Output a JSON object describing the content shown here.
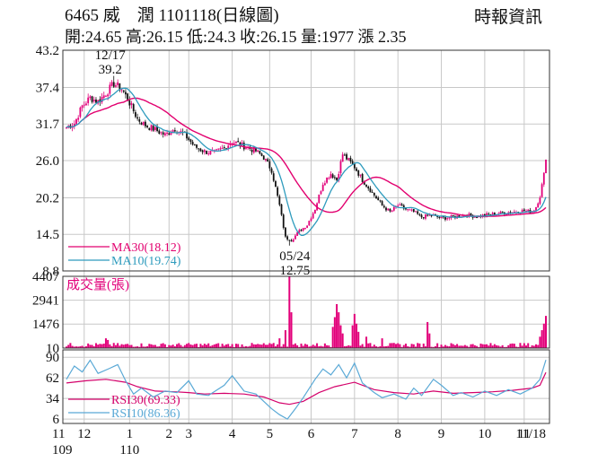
{
  "header": {
    "title": "6465 威　潤 1101118(日線圖)",
    "source": "時報資訊",
    "ohlc": "開:24.65 高:26.15 低:24.3 收:26.15 量:1977 漲 2.35"
  },
  "colors": {
    "up": "#e2007a",
    "down": "#111111",
    "ma30": "#e2006f",
    "ma10": "#2e9bbd",
    "rsi30": "#d4006a",
    "rsi10": "#5aa9d6",
    "volume": "#e2007a",
    "grid": "#c8c8c8"
  },
  "chart_data": [
    {
      "type": "candlestick",
      "name": "price",
      "ylim": [
        8.8,
        43.2
      ],
      "yticks": [
        "43.2",
        "37.4",
        "31.7",
        "26.0",
        "20.2",
        "14.5",
        "8.8"
      ],
      "xticks": [
        {
          "label": "11",
          "day": 0
        },
        {
          "label": "12",
          "day": 9
        },
        {
          "label": "1",
          "day": 32
        },
        {
          "label": "2",
          "day": 52
        },
        {
          "label": "3",
          "day": 62
        },
        {
          "label": "4",
          "day": 84
        },
        {
          "label": "5",
          "day": 103
        },
        {
          "label": "6",
          "day": 124
        },
        {
          "label": "7",
          "day": 146
        },
        {
          "label": "8",
          "day": 168
        },
        {
          "label": "9",
          "day": 190
        },
        {
          "label": "10",
          "day": 212
        },
        {
          "label": "11",
          "day": 232
        },
        {
          "label": "11/18",
          "day": 243
        }
      ],
      "xyear": [
        {
          "label": "109",
          "day": 0
        },
        {
          "label": "110",
          "day": 32
        }
      ],
      "keypoints": [
        {
          "day": 0,
          "close": 31.2
        },
        {
          "day": 4,
          "close": 31.8
        },
        {
          "day": 8,
          "close": 34.5
        },
        {
          "day": 12,
          "close": 35.8
        },
        {
          "day": 16,
          "close": 35.2
        },
        {
          "day": 20,
          "close": 36.5
        },
        {
          "day": 24,
          "close": 38.0
        },
        {
          "day": 28,
          "close": 37.2
        },
        {
          "day": 32,
          "close": 35.0
        },
        {
          "day": 36,
          "close": 32.5
        },
        {
          "day": 40,
          "close": 31.5
        },
        {
          "day": 45,
          "close": 30.8
        },
        {
          "day": 50,
          "close": 30.0
        },
        {
          "day": 55,
          "close": 31.0
        },
        {
          "day": 60,
          "close": 30.0
        },
        {
          "day": 65,
          "close": 28.2
        },
        {
          "day": 70,
          "close": 27.4
        },
        {
          "day": 75,
          "close": 27.2
        },
        {
          "day": 80,
          "close": 28.0
        },
        {
          "day": 84,
          "close": 29.0
        },
        {
          "day": 88,
          "close": 28.5
        },
        {
          "day": 92,
          "close": 28.0
        },
        {
          "day": 96,
          "close": 27.5
        },
        {
          "day": 100,
          "close": 26.5
        },
        {
          "day": 104,
          "close": 24.5
        },
        {
          "day": 108,
          "close": 19.0
        },
        {
          "day": 111,
          "close": 14.0
        },
        {
          "day": 114,
          "close": 13.6
        },
        {
          "day": 118,
          "close": 15.0
        },
        {
          "day": 122,
          "close": 16.0
        },
        {
          "day": 126,
          "close": 18.5
        },
        {
          "day": 130,
          "close": 22.5
        },
        {
          "day": 134,
          "close": 24.0
        },
        {
          "day": 137,
          "close": 23.0
        },
        {
          "day": 140,
          "close": 27.0
        },
        {
          "day": 143,
          "close": 26.0
        },
        {
          "day": 146,
          "close": 25.0
        },
        {
          "day": 150,
          "close": 23.0
        },
        {
          "day": 155,
          "close": 21.0
        },
        {
          "day": 160,
          "close": 19.0
        },
        {
          "day": 164,
          "close": 18.0
        },
        {
          "day": 168,
          "close": 19.0
        },
        {
          "day": 172,
          "close": 18.4
        },
        {
          "day": 176,
          "close": 18.0
        },
        {
          "day": 180,
          "close": 17.2
        },
        {
          "day": 185,
          "close": 17.5
        },
        {
          "day": 190,
          "close": 17.0
        },
        {
          "day": 196,
          "close": 17.2
        },
        {
          "day": 202,
          "close": 17.5
        },
        {
          "day": 208,
          "close": 17.3
        },
        {
          "day": 214,
          "close": 17.6
        },
        {
          "day": 220,
          "close": 17.8
        },
        {
          "day": 226,
          "close": 18.0
        },
        {
          "day": 232,
          "close": 18.2
        },
        {
          "day": 236,
          "close": 18.0
        },
        {
          "day": 238,
          "close": 18.8
        },
        {
          "day": 240,
          "close": 20.5
        },
        {
          "day": 242,
          "close": 23.8
        },
        {
          "day": 243,
          "close": 26.15
        }
      ],
      "annotations": [
        {
          "date": "12/17",
          "value": "39.2",
          "day": 24,
          "price": 39.2
        },
        {
          "date": "05/24",
          "value": "12.75",
          "day": 113,
          "price": 12.75
        }
      ],
      "legend": [
        {
          "label": "MA30(18.12)",
          "color": "#e2006f"
        },
        {
          "label": "MA10(19.74)",
          "color": "#2e9bbd"
        }
      ]
    },
    {
      "type": "bar",
      "name": "volume",
      "title": "成交量(張)",
      "ylim": [
        0,
        4407
      ],
      "yticks": [
        "4407",
        "2941",
        "1476",
        "10"
      ],
      "spikes": [
        {
          "day": 113,
          "value": 4407
        },
        {
          "day": 114,
          "value": 2200
        },
        {
          "day": 111,
          "value": 1100
        },
        {
          "day": 135,
          "value": 1300
        },
        {
          "day": 136,
          "value": 1900
        },
        {
          "day": 137,
          "value": 2700
        },
        {
          "day": 138,
          "value": 2200
        },
        {
          "day": 139,
          "value": 1400
        },
        {
          "day": 140,
          "value": 900
        },
        {
          "day": 145,
          "value": 1400
        },
        {
          "day": 146,
          "value": 2100
        },
        {
          "day": 147,
          "value": 1500
        },
        {
          "day": 148,
          "value": 1000
        },
        {
          "day": 152,
          "value": 700
        },
        {
          "day": 160,
          "value": 600
        },
        {
          "day": 183,
          "value": 1600
        },
        {
          "day": 184,
          "value": 900
        },
        {
          "day": 108,
          "value": 600
        },
        {
          "day": 20,
          "value": 600
        },
        {
          "day": 21,
          "value": 500
        },
        {
          "day": 240,
          "value": 700
        },
        {
          "day": 241,
          "value": 1100
        },
        {
          "day": 242,
          "value": 1500
        },
        {
          "day": 243,
          "value": 1977
        }
      ]
    },
    {
      "type": "line",
      "name": "rsi",
      "ylim": [
        0,
        100
      ],
      "yticks": [
        "90",
        "62",
        "34",
        "6"
      ],
      "series": [
        {
          "name": "RSI30(69.33)",
          "color": "#d4006a",
          "points": [
            [
              0,
              55
            ],
            [
              10,
              58
            ],
            [
              20,
              60
            ],
            [
              30,
              56
            ],
            [
              36,
              50
            ],
            [
              45,
              44
            ],
            [
              55,
              43
            ],
            [
              62,
              42
            ],
            [
              70,
              40
            ],
            [
              80,
              41
            ],
            [
              90,
              40
            ],
            [
              100,
              36
            ],
            [
              108,
              28
            ],
            [
              113,
              26
            ],
            [
              120,
              30
            ],
            [
              128,
              42
            ],
            [
              136,
              50
            ],
            [
              146,
              56
            ],
            [
              156,
              46
            ],
            [
              166,
              42
            ],
            [
              176,
              40
            ],
            [
              186,
              44
            ],
            [
              196,
              41
            ],
            [
              206,
              42
            ],
            [
              216,
              43
            ],
            [
              226,
              45
            ],
            [
              236,
              48
            ],
            [
              240,
              52
            ],
            [
              243,
              69.33
            ]
          ]
        },
        {
          "name": "RSI10(86.36)",
          "color": "#5aa9d6",
          "points": [
            [
              0,
              60
            ],
            [
              4,
              78
            ],
            [
              8,
              70
            ],
            [
              12,
              86
            ],
            [
              16,
              68
            ],
            [
              22,
              75
            ],
            [
              26,
              80
            ],
            [
              30,
              58
            ],
            [
              34,
              40
            ],
            [
              38,
              48
            ],
            [
              44,
              36
            ],
            [
              50,
              44
            ],
            [
              56,
              42
            ],
            [
              62,
              58
            ],
            [
              66,
              40
            ],
            [
              72,
              38
            ],
            [
              80,
              52
            ],
            [
              84,
              65
            ],
            [
              90,
              44
            ],
            [
              96,
              40
            ],
            [
              100,
              30
            ],
            [
              104,
              20
            ],
            [
              108,
              12
            ],
            [
              112,
              6
            ],
            [
              116,
              20
            ],
            [
              120,
              35
            ],
            [
              126,
              60
            ],
            [
              130,
              74
            ],
            [
              134,
              66
            ],
            [
              138,
              80
            ],
            [
              142,
              62
            ],
            [
              146,
              82
            ],
            [
              150,
              55
            ],
            [
              156,
              42
            ],
            [
              160,
              35
            ],
            [
              166,
              40
            ],
            [
              172,
              33
            ],
            [
              176,
              48
            ],
            [
              180,
              38
            ],
            [
              186,
              60
            ],
            [
              190,
              52
            ],
            [
              196,
              38
            ],
            [
              200,
              42
            ],
            [
              206,
              36
            ],
            [
              212,
              44
            ],
            [
              218,
              38
            ],
            [
              224,
              46
            ],
            [
              230,
              40
            ],
            [
              236,
              48
            ],
            [
              240,
              60
            ],
            [
              243,
              86.36
            ]
          ]
        }
      ]
    }
  ]
}
